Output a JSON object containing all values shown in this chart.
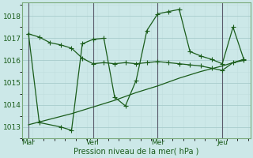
{
  "background_color": "#cce8e8",
  "grid_color_major": "#a8cccc",
  "grid_color_minor": "#c0dede",
  "line_color": "#1a5c1a",
  "xlabel": "Pression niveau de la mer( hPa )",
  "ylim": [
    1012.5,
    1018.6
  ],
  "yticks": [
    1013,
    1014,
    1015,
    1016,
    1017,
    1018
  ],
  "xtick_labels": [
    "Mar",
    "Ven",
    "Mer",
    "Jeu"
  ],
  "xtick_positions": [
    0,
    30,
    60,
    90
  ],
  "xlim": [
    -3,
    103
  ],
  "series1_x": [
    0,
    5,
    10,
    15,
    20,
    25,
    30,
    35,
    40,
    45,
    50,
    55,
    60,
    65,
    70,
    75,
    80,
    85,
    90,
    95,
    100
  ],
  "series1_y": [
    1017.2,
    1017.05,
    1016.8,
    1016.7,
    1016.55,
    1016.1,
    1015.85,
    1015.9,
    1015.85,
    1015.9,
    1015.85,
    1015.9,
    1015.95,
    1015.9,
    1015.85,
    1015.8,
    1015.75,
    1015.65,
    1015.55,
    1015.9,
    1016.0
  ],
  "series2_x": [
    0,
    5,
    15,
    20,
    25,
    30,
    35,
    40,
    45,
    50,
    55,
    60,
    65,
    70,
    75,
    80,
    85,
    90,
    95,
    100
  ],
  "series2_y": [
    1017.2,
    1013.2,
    1013.0,
    1012.85,
    1016.75,
    1016.95,
    1017.0,
    1014.35,
    1013.95,
    1015.1,
    1017.35,
    1018.1,
    1018.2,
    1018.3,
    1016.4,
    1016.2,
    1016.05,
    1015.85,
    1017.5,
    1016.05
  ],
  "series3_x": [
    0,
    10,
    20,
    30,
    40,
    50,
    60,
    70,
    80,
    90,
    100
  ],
  "series3_y": [
    1013.1,
    1013.35,
    1013.6,
    1013.9,
    1014.2,
    1014.55,
    1014.85,
    1015.2,
    1015.5,
    1015.75,
    1016.05
  ],
  "vline_positions": [
    0,
    30,
    60,
    90
  ],
  "vline_color": "#5a5a6a"
}
